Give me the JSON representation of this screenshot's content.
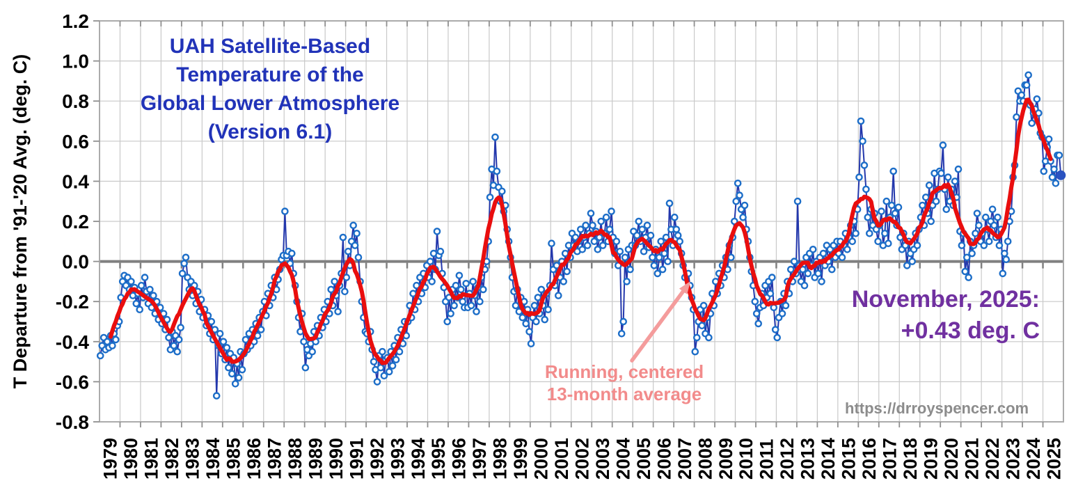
{
  "title": {
    "lines": [
      "UAH Satellite-Based",
      "Temperature of the",
      "Global Lower Atmosphere",
      "(Version 6.1)"
    ],
    "color": "#2133B8"
  },
  "y_axis": {
    "title": "T Departure from '91-'20 Avg. (deg. C)",
    "tick_labels": [
      "1.2",
      "1.0",
      "0.8",
      "0.6",
      "0.4",
      "0.2",
      "0.0",
      "-0.2",
      "-0.4",
      "-0.6",
      "-0.8"
    ]
  },
  "x_axis": {
    "tick_labels": [
      "1979",
      "1980",
      "1981",
      "1982",
      "1983",
      "1984",
      "1985",
      "1986",
      "1987",
      "1988",
      "1989",
      "1990",
      "1991",
      "1992",
      "1993",
      "1994",
      "1995",
      "1996",
      "1997",
      "1998",
      "1999",
      "2000",
      "2001",
      "2002",
      "2003",
      "2004",
      "2005",
      "2006",
      "2007",
      "2008",
      "2009",
      "2010",
      "2011",
      "2012",
      "2013",
      "2014",
      "2015",
      "2016",
      "2017",
      "2018",
      "2019",
      "2020",
      "2021",
      "2022",
      "2023",
      "2024",
      "2025"
    ]
  },
  "annotations": {
    "latest": {
      "line1": "November, 2025:",
      "line2": "+0.43 deg. C",
      "color": "#7030A0"
    },
    "running_avg": {
      "line1": "Running, centered",
      "line2": "13-month average",
      "color": "#F28B8B"
    },
    "watermark": {
      "text": "https://drroyspencer.com",
      "color": "#8C8C8C"
    }
  },
  "colors": {
    "monthly_marker": "#1D6EC8",
    "monthly_line": "#2438AC",
    "average_line": "#E90E0E",
    "gridline": "#C9C9C9",
    "border": "#ABABAB",
    "zero_line": "#808080",
    "tick": "#8F8F8F",
    "axis_text": "#000000",
    "arrow": "#F49C9C",
    "final_dot": "#2A52C0"
  },
  "chart_data": {
    "type": "line",
    "title": "UAH Satellite-Based Temperature of the Global Lower Atmosphere (Version 6.1)",
    "ylabel": "T Departure from '91-'20 Avg. (deg. C)",
    "ylim": [
      -0.8,
      1.2
    ],
    "y_tick_step": 0.2,
    "x_range": [
      "1979-01",
      "2025-11"
    ],
    "grid": true,
    "legend_position": "none",
    "highlight_point": {
      "month": "2025-11",
      "value": 0.43
    },
    "series": [
      {
        "name": "Monthly temperature anomaly",
        "type": "line+markers",
        "values_by_year": {
          "1979": [
            -0.47,
            -0.42,
            -0.38,
            -0.44,
            -0.4,
            -0.43,
            -0.37,
            -0.42,
            -0.36,
            -0.39,
            -0.32,
            -0.3
          ],
          "1980": [
            -0.18,
            -0.1,
            -0.07,
            -0.12,
            -0.08,
            -0.14,
            -0.1,
            -0.17,
            -0.13,
            -0.21,
            -0.16,
            -0.24
          ],
          "1981": [
            -0.12,
            -0.18,
            -0.08,
            -0.15,
            -0.21,
            -0.14,
            -0.23,
            -0.17,
            -0.26,
            -0.2,
            -0.29,
            -0.23
          ],
          "1982": [
            -0.31,
            -0.26,
            -0.34,
            -0.29,
            -0.38,
            -0.44,
            -0.35,
            -0.42,
            -0.37,
            -0.45,
            -0.39,
            -0.33
          ],
          "1983": [
            -0.06,
            -0.01,
            0.02,
            -0.08,
            -0.14,
            -0.1,
            -0.17,
            -0.12,
            -0.21,
            -0.15,
            -0.25,
            -0.19
          ],
          "1984": [
            -0.28,
            -0.24,
            -0.32,
            -0.27,
            -0.36,
            -0.3,
            -0.39,
            -0.34,
            -0.67,
            -0.42,
            -0.36,
            -0.46
          ],
          "1985": [
            -0.4,
            -0.49,
            -0.43,
            -0.53,
            -0.46,
            -0.56,
            -0.48,
            -0.61,
            -0.51,
            -0.58,
            -0.45,
            -0.54
          ],
          "1986": [
            -0.46,
            -0.39,
            -0.44,
            -0.36,
            -0.42,
            -0.34,
            -0.4,
            -0.31,
            -0.37,
            -0.28,
            -0.34,
            -0.25
          ],
          "1987": [
            -0.2,
            -0.27,
            -0.16,
            -0.22,
            -0.12,
            -0.18,
            -0.08,
            -0.14,
            -0.09,
            -0.04,
            0.01,
            0.03
          ],
          "1988": [
            0.25,
            0.03,
            0.05,
            -0.01,
            0.04,
            -0.06,
            -0.12,
            -0.2,
            -0.28,
            -0.35,
            -0.26,
            -0.4
          ],
          "1989": [
            -0.53,
            -0.44,
            -0.47,
            -0.41,
            -0.45,
            -0.35,
            -0.4,
            -0.32,
            -0.37,
            -0.28,
            -0.33,
            -0.24
          ],
          "1990": [
            -0.3,
            -0.2,
            -0.26,
            -0.14,
            -0.22,
            -0.1,
            -0.17,
            -0.25,
            -0.12,
            -0.06,
            0.12,
            -0.15
          ],
          "1991": [
            -0.08,
            0.05,
            -0.02,
            0.1,
            0.18,
            0.08,
            0.14,
            0.02,
            -0.1,
            -0.2,
            -0.28,
            -0.35
          ],
          "1992": [
            -0.36,
            -0.4,
            -0.35,
            -0.44,
            -0.5,
            -0.54,
            -0.6,
            -0.47,
            -0.53,
            -0.45,
            -0.57,
            -0.49
          ],
          "1993": [
            -0.48,
            -0.55,
            -0.45,
            -0.52,
            -0.42,
            -0.49,
            -0.38,
            -0.45,
            -0.34,
            -0.41,
            -0.3,
            -0.37
          ],
          "1994": [
            -0.3,
            -0.22,
            -0.28,
            -0.16,
            -0.24,
            -0.12,
            -0.2,
            -0.08,
            -0.16,
            -0.06,
            -0.13,
            -0.02
          ],
          "1995": [
            -0.08,
            0.0,
            -0.1,
            0.04,
            -0.04,
            0.15,
            0.03,
            0.05,
            -0.06,
            -0.13,
            -0.2,
            -0.3
          ],
          "1996": [
            -0.18,
            -0.26,
            -0.14,
            -0.22,
            -0.12,
            -0.18,
            -0.07,
            -0.14,
            -0.2,
            -0.23,
            -0.11,
            -0.23
          ],
          "1997": [
            -0.16,
            -0.22,
            -0.1,
            -0.17,
            -0.25,
            -0.13,
            -0.2,
            -0.08,
            -0.14,
            -0.04,
            0.0,
            0.1
          ],
          "1998": [
            0.32,
            0.46,
            0.38,
            0.62,
            0.45,
            0.37,
            0.3,
            0.35,
            0.25,
            0.28,
            0.16,
            0.1
          ],
          "1999": [
            0.02,
            -0.08,
            -0.15,
            -0.22,
            -0.14,
            -0.25,
            -0.18,
            -0.28,
            -0.2,
            -0.31,
            -0.24,
            -0.35
          ],
          "2000": [
            -0.41,
            -0.28,
            -0.22,
            -0.3,
            -0.18,
            -0.26,
            -0.14,
            -0.22,
            -0.29,
            -0.16,
            -0.24,
            -0.12
          ],
          "2001": [
            0.09,
            -0.04,
            -0.12,
            -0.02,
            -0.17,
            -0.08,
            0.0,
            -0.1,
            0.04,
            -0.05,
            0.08,
            0.02
          ],
          "2002": [
            0.14,
            0.08,
            0.12,
            0.05,
            0.1,
            0.16,
            0.06,
            0.12,
            0.18,
            0.08,
            0.14,
            0.24
          ],
          "2003": [
            0.18,
            0.1,
            0.15,
            0.06,
            0.12,
            0.2,
            0.08,
            0.14,
            0.22,
            0.1,
            0.16,
            0.25
          ],
          "2004": [
            0.12,
            0.04,
            0.1,
            -0.02,
            0.05,
            -0.36,
            -0.3,
            0.02,
            -0.1,
            0.06,
            -0.04,
            0.08
          ],
          "2005": [
            0.15,
            0.08,
            0.13,
            0.2,
            0.1,
            0.16,
            0.05,
            0.12,
            0.18,
            0.07,
            0.13,
            0.02
          ],
          "2006": [
            -0.02,
            0.06,
            -0.06,
            0.02,
            0.1,
            -0.04,
            0.04,
            0.12,
            0.0,
            0.29,
            0.16,
            0.08
          ],
          "2007": [
            0.22,
            0.16,
            0.13,
            0.1,
            0.04,
            -0.02,
            -0.08,
            -0.14,
            -0.06,
            -0.12,
            -0.18,
            -0.24
          ],
          "2008": [
            -0.45,
            -0.38,
            -0.3,
            -0.24,
            -0.32,
            -0.22,
            -0.36,
            -0.28,
            -0.38,
            -0.26,
            -0.16,
            -0.22
          ],
          "2009": [
            -0.1,
            -0.16,
            -0.06,
            -0.12,
            -0.02,
            -0.08,
            0.02,
            -0.04,
            0.08,
            0.02,
            0.12,
            0.2
          ],
          "2010": [
            0.3,
            0.39,
            0.33,
            0.26,
            0.22,
            0.28,
            0.16,
            0.1,
            0.02,
            -0.05,
            -0.12,
            -0.2
          ],
          "2011": [
            -0.26,
            -0.31,
            -0.23,
            -0.16,
            -0.22,
            -0.12,
            -0.18,
            -0.1,
            -0.16,
            -0.08,
            -0.23,
            -0.34
          ],
          "2012": [
            -0.38,
            -0.28,
            -0.2,
            -0.26,
            -0.16,
            -0.22,
            -0.1,
            -0.16,
            -0.04,
            -0.1,
            0.0,
            -0.06
          ],
          "2013": [
            0.3,
            -0.02,
            -0.1,
            -0.04,
            -0.12,
            0.02,
            -0.06,
            0.04,
            -0.02,
            0.06,
            -0.08,
            0.0
          ],
          "2014": [
            -0.06,
            0.02,
            -0.1,
            0.04,
            -0.02,
            0.08,
            0.0,
            0.06,
            -0.04,
            0.08,
            0.02,
            0.1
          ],
          "2015": [
            0.04,
            0.1,
            0.02,
            0.08,
            0.14,
            0.06,
            0.12,
            0.18,
            0.1,
            0.2,
            0.14,
            0.26
          ],
          "2016": [
            0.42,
            0.7,
            0.6,
            0.48,
            0.36,
            0.22,
            0.14,
            0.26,
            0.18,
            0.24,
            0.16,
            0.1
          ],
          "2017": [
            0.18,
            0.25,
            0.08,
            0.14,
            0.3,
            0.09,
            0.22,
            0.28,
            0.45,
            0.24,
            0.18,
            0.27
          ],
          "2018": [
            0.12,
            0.06,
            0.14,
            0.08,
            -0.02,
            0.1,
            0.04,
            0.0,
            0.06,
            0.14,
            0.08,
            0.16
          ],
          "2019": [
            0.22,
            0.28,
            0.18,
            0.32,
            0.24,
            0.38,
            0.2,
            0.28,
            0.44,
            0.3,
            0.36,
            0.45
          ],
          "2020": [
            0.44,
            0.58,
            0.36,
            0.26,
            0.42,
            0.3,
            0.36,
            0.28,
            0.4,
            0.32,
            0.46,
            0.15
          ],
          "2021": [
            0.08,
            0.14,
            -0.05,
            0.02,
            -0.08,
            0.1,
            0.04,
            0.08,
            0.14,
            0.24,
            0.18,
            0.1
          ],
          "2022": [
            0.14,
            0.08,
            0.22,
            0.16,
            0.1,
            0.2,
            0.26,
            0.18,
            0.12,
            0.22,
            0.08,
            0.16
          ],
          "2023": [
            -0.06,
            0.04,
            0.01,
            0.1,
            0.2,
            0.25,
            0.42,
            0.48,
            0.72,
            0.85,
            0.8,
            0.83
          ],
          "2024": [
            0.8,
            0.88,
            0.88,
            0.93,
            0.78,
            0.69,
            0.74,
            0.76,
            0.81,
            0.74,
            0.64,
            0.62
          ],
          "2025": [
            0.45,
            0.5,
            0.57,
            0.61,
            0.5,
            0.42,
            0.46,
            0.39,
            0.53,
            0.53,
            0.43
          ]
        }
      },
      {
        "name": "Running, centered 13-month average",
        "type": "line",
        "window": 13,
        "derived_from": "Monthly temperature anomaly"
      }
    ]
  }
}
